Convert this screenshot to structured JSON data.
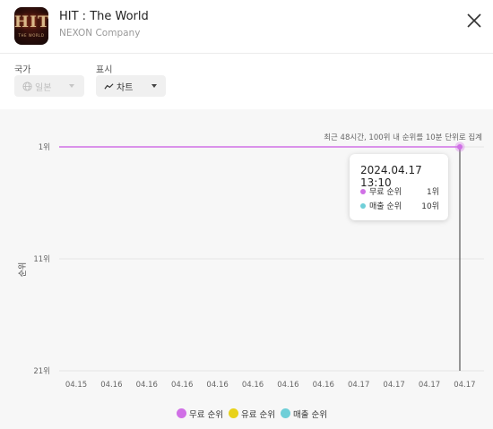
{
  "app": {
    "logo_text": "HIT",
    "logo_subtext": "THE WORLD",
    "title": "HIT : The World",
    "company": "NEXON Company"
  },
  "controls": {
    "country_label": "국가",
    "country_value": "일본",
    "country_icon": "globe-icon",
    "display_label": "표시",
    "display_value": "차트",
    "display_icon": "trend-line-icon"
  },
  "colors": {
    "free": "#d070e6",
    "paid": "#e8d21a",
    "sales": "#6fcfd8",
    "grid": "#e6e6e6",
    "axis_text": "#666666"
  },
  "tooltip": {
    "date": "2024.04.17 13:10",
    "rows": [
      {
        "name": "무료 순위",
        "value": "1위",
        "color": "#d070e6"
      },
      {
        "name": "매출 순위",
        "value": "10위",
        "color": "#6fcfd8"
      }
    ]
  },
  "chart_data": {
    "type": "line",
    "note": "최근 48시간, 100위 내 순위를 10분 단위로 집계",
    "ylabel": "순위",
    "y_ticks": [
      "1위",
      "11위",
      "21위"
    ],
    "ylim": [
      1,
      21
    ],
    "y_inverted": true,
    "x_ticks": [
      "04.15",
      "04.16",
      "04.16",
      "04.16",
      "04.16",
      "04.16",
      "04.16",
      "04.16",
      "04.17",
      "04.17",
      "04.17",
      "04.17"
    ],
    "hover_index": 11,
    "series": [
      {
        "name": "무료 순위",
        "values": [
          1,
          1,
          1,
          1,
          1,
          1,
          1,
          1,
          1,
          1,
          1,
          1
        ]
      }
    ],
    "legend": [
      "무료 순위",
      "유료 순위",
      "매출 순위"
    ],
    "legend_position": "bottom"
  }
}
